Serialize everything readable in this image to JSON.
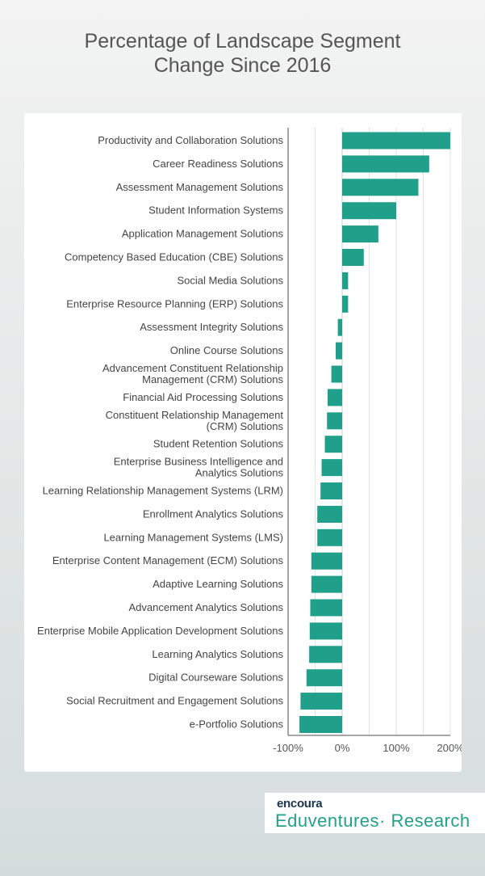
{
  "chart_data": {
    "type": "bar",
    "orientation": "horizontal",
    "title": "Percentage of Landscape Segment Change Since 2016",
    "title_lines": [
      "Percentage of Landscape Segment",
      "Change Since 2016"
    ],
    "xlabel": "",
    "ylabel": "",
    "xlim": [
      -100,
      200
    ],
    "xticks": [
      -100,
      0,
      100,
      200
    ],
    "xtick_labels": [
      "-100%",
      "0%",
      "100%",
      "200%"
    ],
    "grid": true,
    "bar_color": "#20a08a",
    "categories": [
      [
        "Productivity and Collaboration Solutions"
      ],
      [
        "Career Readiness Solutions"
      ],
      [
        "Assessment Management Solutions"
      ],
      [
        "Student Information Systems"
      ],
      [
        "Application Management Solutions"
      ],
      [
        "Competency Based Education (CBE) Solutions"
      ],
      [
        "Social Media Solutions"
      ],
      [
        "Enterprise Resource Planning (ERP) Solutions"
      ],
      [
        "Assessment Integrity Solutions"
      ],
      [
        "Online Course Solutions"
      ],
      [
        "Advancement Constituent Relationship",
        "Management (CRM) Solutions"
      ],
      [
        "Financial Aid Processing Solutions"
      ],
      [
        "Constituent Relationship Management",
        "(CRM) Solutions"
      ],
      [
        "Student Retention Solutions"
      ],
      [
        "Enterprise Business Intelligence and",
        "Analytics Solutions"
      ],
      [
        "Learning Relationship Management Systems (LRM)"
      ],
      [
        "Enrollment Analytics Solutions"
      ],
      [
        "Learning Management Systems (LMS)"
      ],
      [
        "Enterprise Content Management (ECM) Solutions"
      ],
      [
        "Adaptive Learning Solutions"
      ],
      [
        "Advancement Analytics Solutions"
      ],
      [
        "Enterprise Mobile Application Development Solutions"
      ],
      [
        "Learning Analytics Solutions"
      ],
      [
        "Digital Courseware Solutions"
      ],
      [
        "Social Recruitment and Engagement Solutions"
      ],
      [
        "e-Portfolio Solutions"
      ]
    ],
    "values": [
      200,
      161,
      141,
      100,
      67,
      40,
      11,
      11,
      -8,
      -12,
      -20,
      -27,
      -28,
      -32,
      -38,
      -40,
      -46,
      -46,
      -57,
      -57,
      -59,
      -60,
      -61,
      -66,
      -77,
      -79
    ]
  },
  "logo": {
    "brand": "encoura",
    "sub": "Eduventures· Research"
  }
}
